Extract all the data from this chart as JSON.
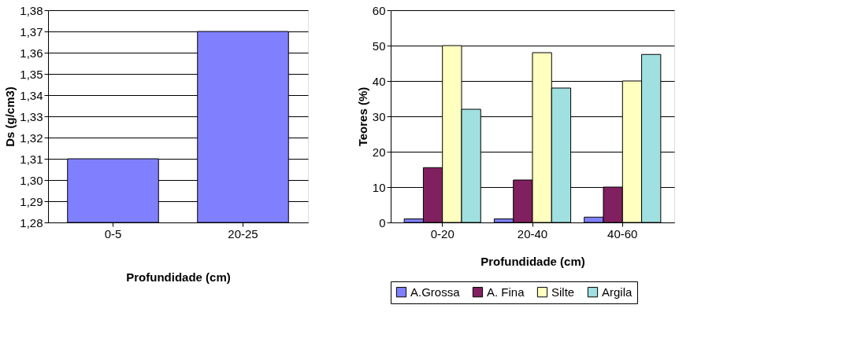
{
  "chart_data": [
    {
      "type": "bar",
      "xlabel": "Profundidade (cm)",
      "ylabel": "Ds (g/cm3)",
      "categories": [
        "0-5",
        "20-25"
      ],
      "values": [
        1.31,
        1.37
      ],
      "color": "#8080ff",
      "ylim": [
        1.28,
        1.38
      ],
      "yticks": [
        {
          "value": 1.28,
          "label": "1,28"
        },
        {
          "value": 1.29,
          "label": "1,29"
        },
        {
          "value": 1.3,
          "label": "1,30"
        },
        {
          "value": 1.31,
          "label": "1,31"
        },
        {
          "value": 1.32,
          "label": "1,32"
        },
        {
          "value": 1.33,
          "label": "1,33"
        },
        {
          "value": 1.34,
          "label": "1,34"
        },
        {
          "value": 1.35,
          "label": "1,35"
        },
        {
          "value": 1.36,
          "label": "1,36"
        },
        {
          "value": 1.37,
          "label": "1,37"
        },
        {
          "value": 1.38,
          "label": "1,38"
        }
      ],
      "grid": "y",
      "legend": false
    },
    {
      "type": "bar",
      "xlabel": "Profundidade (cm)",
      "ylabel": "Teores (%)",
      "categories": [
        "0-20",
        "20-40",
        "40-60"
      ],
      "series": [
        {
          "name": "A.Grossa",
          "color": "#8080ff",
          "values": [
            1,
            1,
            1.5
          ]
        },
        {
          "name": "A. Fina",
          "color": "#802060",
          "values": [
            15.5,
            12,
            10
          ]
        },
        {
          "name": "Silte",
          "color": "#ffffc0",
          "values": [
            50,
            48,
            40
          ]
        },
        {
          "name": "Argila",
          "color": "#a0e0e0",
          "values": [
            32,
            38,
            47.5
          ]
        }
      ],
      "ylim": [
        0,
        60
      ],
      "yticks": [
        0,
        10,
        20,
        30,
        40,
        50,
        60
      ],
      "grid": "y",
      "legend": "bottom"
    }
  ]
}
